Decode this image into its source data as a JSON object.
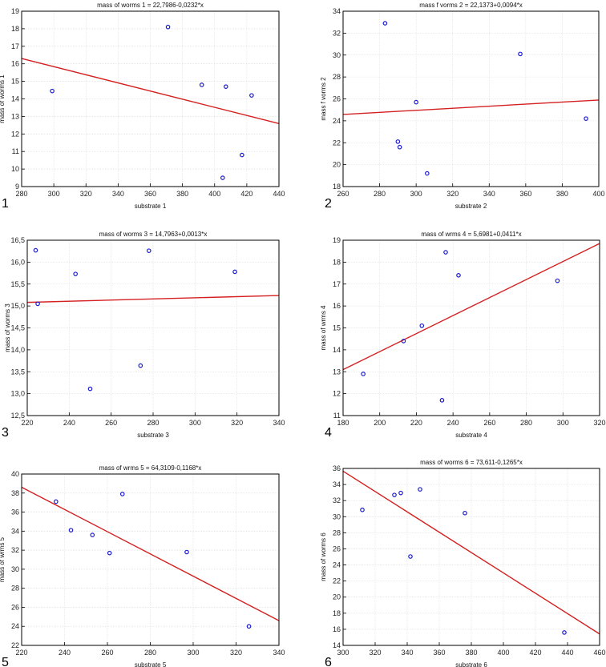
{
  "chart_data": [
    {
      "type": "scatter",
      "panel_number": "1",
      "title": "mass of worms 1 = 22,7986-0,0232*x",
      "xlabel": "substrate 1",
      "ylabel": "mass of worms 1",
      "xlim": [
        280,
        440
      ],
      "ylim": [
        9,
        19
      ],
      "xticks": [
        280,
        300,
        320,
        340,
        360,
        380,
        400,
        420,
        440
      ],
      "yticks": [
        9,
        10,
        11,
        12,
        13,
        14,
        15,
        16,
        17,
        18,
        19
      ],
      "grid": true,
      "points": [
        [
          299,
          14.45
        ],
        [
          371,
          18.1
        ],
        [
          392,
          14.8
        ],
        [
          407,
          14.7
        ],
        [
          423,
          14.2
        ],
        [
          417,
          10.8
        ],
        [
          405,
          9.5
        ]
      ],
      "fit": {
        "intercept": 22.7986,
        "slope": -0.0232
      }
    },
    {
      "type": "scatter",
      "panel_number": "2",
      "title": "mass f vorms 2 = 22,1373+0,0094*x",
      "xlabel": "substrate 2",
      "ylabel": "mass f vorms 2",
      "xlim": [
        260,
        400
      ],
      "ylim": [
        18,
        34
      ],
      "xticks": [
        260,
        280,
        300,
        320,
        340,
        360,
        380,
        400
      ],
      "yticks": [
        18,
        20,
        22,
        24,
        26,
        28,
        30,
        32,
        34
      ],
      "grid": true,
      "points": [
        [
          283,
          32.9
        ],
        [
          357,
          30.1
        ],
        [
          300,
          25.7
        ],
        [
          393,
          24.2
        ],
        [
          290,
          22.1
        ],
        [
          291,
          21.6
        ],
        [
          306,
          19.2
        ]
      ],
      "fit": {
        "intercept": 22.1373,
        "slope": 0.0094
      }
    },
    {
      "type": "scatter",
      "panel_number": "3",
      "title": "mass of worms 3 = 14,7963+0,0013*x",
      "xlabel": "substrate 3",
      "ylabel": "mass of worms 3",
      "xlim": [
        220,
        340
      ],
      "ylim": [
        12.5,
        16.5
      ],
      "xticks": [
        220,
        240,
        260,
        280,
        300,
        320,
        340
      ],
      "yticks": [
        "12,5",
        "13,0",
        "13,5",
        "14,0",
        "14,5",
        "15,0",
        "15,5",
        "16,0",
        "16,5"
      ],
      "grid": true,
      "points": [
        [
          224,
          16.27
        ],
        [
          225,
          15.05
        ],
        [
          243,
          15.73
        ],
        [
          278,
          16.26
        ],
        [
          319,
          15.78
        ],
        [
          274,
          13.64
        ],
        [
          250,
          13.11
        ]
      ],
      "fit": {
        "intercept": 14.7963,
        "slope": 0.0013
      }
    },
    {
      "type": "scatter",
      "panel_number": "4",
      "title": "mass of wrms 4 = 5,6981+0,0411*x",
      "xlabel": "substrate 4",
      "ylabel": "mass of wrms 4",
      "xlim": [
        180,
        320
      ],
      "ylim": [
        11,
        19
      ],
      "xticks": [
        180,
        200,
        220,
        240,
        260,
        280,
        300,
        320
      ],
      "yticks": [
        11,
        12,
        13,
        14,
        15,
        16,
        17,
        18,
        19
      ],
      "grid": true,
      "points": [
        [
          191,
          12.9
        ],
        [
          213,
          14.4
        ],
        [
          223,
          15.1
        ],
        [
          236,
          18.45
        ],
        [
          243,
          17.4
        ],
        [
          234,
          11.7
        ],
        [
          297,
          17.15
        ]
      ],
      "fit": {
        "intercept": 5.6981,
        "slope": 0.0411
      }
    },
    {
      "type": "scatter",
      "panel_number": "5",
      "title": "mass of wrms 5 = 64,3109-0,1168*x",
      "xlabel": "substrate 5",
      "ylabel": "mass of wrms 5",
      "xlim": [
        220,
        340
      ],
      "ylim": [
        22,
        40
      ],
      "xticks": [
        220,
        240,
        260,
        280,
        300,
        320,
        340
      ],
      "yticks": [
        22,
        24,
        26,
        28,
        30,
        32,
        34,
        36,
        38,
        40
      ],
      "grid": true,
      "points": [
        [
          236,
          37.1
        ],
        [
          243,
          34.1
        ],
        [
          253,
          33.6
        ],
        [
          261,
          31.7
        ],
        [
          267,
          37.9
        ],
        [
          297,
          31.8
        ],
        [
          326,
          24.0
        ]
      ],
      "fit": {
        "intercept": 64.3109,
        "slope": -0.1168
      }
    },
    {
      "type": "scatter",
      "panel_number": "6",
      "title": "mass of worms 6 = 73,611-0,1265*x",
      "xlabel": "substrate 6",
      "ylabel": "mass of worms 6",
      "xlim": [
        300,
        460
      ],
      "ylim": [
        14,
        36
      ],
      "xticks": [
        300,
        320,
        340,
        360,
        380,
        400,
        420,
        440,
        460
      ],
      "yticks": [
        14,
        16,
        18,
        20,
        22,
        24,
        26,
        28,
        30,
        32,
        34,
        36
      ],
      "grid": true,
      "points": [
        [
          312,
          30.85
        ],
        [
          332,
          32.7
        ],
        [
          336,
          32.95
        ],
        [
          348,
          33.4
        ],
        [
          342,
          25.05
        ],
        [
          376,
          30.45
        ],
        [
          438,
          15.6
        ]
      ],
      "fit": {
        "intercept": 73.611,
        "slope": -0.1265
      }
    }
  ],
  "colors": {
    "points": "#1a1ad0",
    "fit_line": "#d42020",
    "grid": "#dcdcdc",
    "frame": "#000000"
  }
}
